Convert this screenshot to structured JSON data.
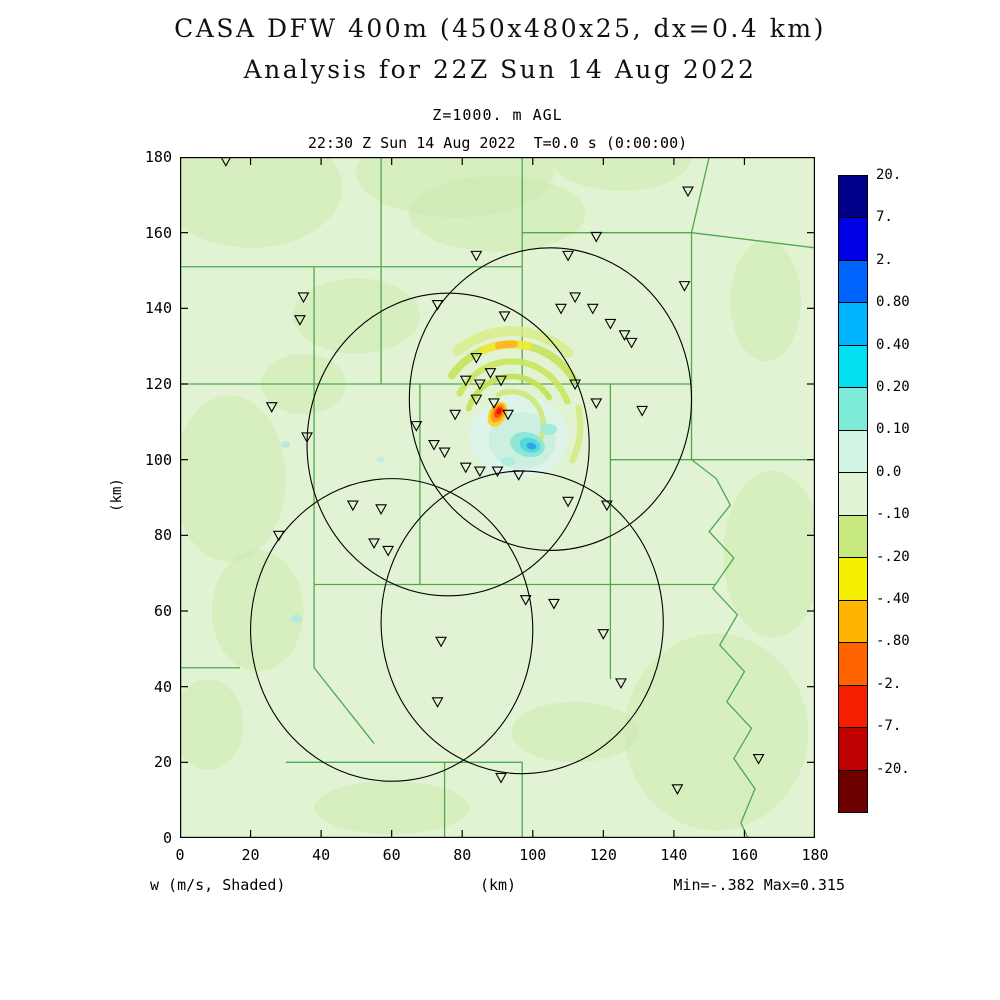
{
  "header": {
    "title": "CASA DFW 400m (450x480x25, dx=0.4 km)",
    "subtitle": "Analysis for 22Z Sun 14 Aug 2022",
    "level_label": "Z=1000. m AGL",
    "time_label": "22:30 Z Sun 14 Aug 2022  T=0.0 s (0:00:00)"
  },
  "footer": {
    "field_label": "w (m/s, Shaded)",
    "stats_label": "Min=-.382 Max=0.315"
  },
  "chart_data": {
    "type": "heatmap",
    "title": "CASA DFW 400m (450x480x25, dx=0.4 km)",
    "subtitle": "Analysis for 22Z Sun 14 Aug 2022",
    "level_label": "Z=1000. m AGL",
    "time_label": "22:30 Z Sun 14 Aug 2022  T=0.0 s (0:00:00)",
    "field": "w (m/s, Shaded)",
    "min_value": -0.382,
    "max_value": 0.315,
    "xlabel": "(km)",
    "ylabel": "(km)",
    "xlim": [
      0,
      180
    ],
    "ylim": [
      0,
      180
    ],
    "xticks": [
      0,
      20,
      40,
      60,
      80,
      100,
      120,
      140,
      160,
      180
    ],
    "yticks": [
      0,
      20,
      40,
      60,
      80,
      100,
      120,
      140,
      160,
      180
    ],
    "colorbar": {
      "tick_labels": [
        "20.",
        "7.",
        "2.",
        "0.80",
        "0.40",
        "0.20",
        "0.10",
        "0.0",
        "-.10",
        "-.20",
        "-.40",
        "-.80",
        "-2.",
        "-7.",
        "-20."
      ],
      "colors_top_to_bottom": [
        "#00008B",
        "#0000E6",
        "#0064FF",
        "#00B4FF",
        "#00E0F0",
        "#7CEBD8",
        "#D4F5E6",
        "#E2F4D4",
        "#C6E87E",
        "#F4F000",
        "#FFB400",
        "#FF6400",
        "#F51E00",
        "#BE0000",
        "#6E0000"
      ]
    },
    "map": {
      "background": "#E2F3D3",
      "patch_color": "#CDEAAE",
      "county_color": "#4FA84F",
      "patches": [
        [
          20,
          172,
          26,
          16
        ],
        [
          78,
          176,
          28,
          12
        ],
        [
          125,
          180,
          20,
          9
        ],
        [
          14,
          95,
          16,
          22
        ],
        [
          22,
          60,
          13,
          16
        ],
        [
          50,
          138,
          18,
          10
        ],
        [
          152,
          28,
          26,
          26
        ],
        [
          168,
          75,
          14,
          22
        ],
        [
          60,
          8,
          22,
          7
        ],
        [
          112,
          28,
          18,
          8
        ],
        [
          166,
          142,
          10,
          16
        ],
        [
          90,
          165,
          25,
          10
        ],
        [
          35,
          120,
          12,
          8
        ],
        [
          8,
          30,
          10,
          12
        ],
        [
          33,
          58,
          1.6,
          1.1,
          "#B8EADC",
          1
        ],
        [
          30,
          104,
          1.3,
          0.9,
          "#B8EADC",
          1
        ],
        [
          57,
          100,
          1.1,
          0.8,
          "#C4EEE0",
          1
        ]
      ],
      "county_lines": [
        [
          [
            0,
            151
          ],
          [
            57,
            151
          ]
        ],
        [
          [
            57,
            192
          ],
          [
            57,
            120
          ]
        ],
        [
          [
            57,
            151
          ],
          [
            97,
            151
          ]
        ],
        [
          [
            97,
            192
          ],
          [
            97,
            120
          ]
        ],
        [
          [
            97,
            160
          ],
          [
            145,
            160
          ]
        ],
        [
          [
            145,
            160
          ],
          [
            153,
            192
          ]
        ],
        [
          [
            145,
            160
          ],
          [
            180,
            156
          ]
        ],
        [
          [
            145,
            160
          ],
          [
            145,
            100
          ]
        ],
        [
          [
            0,
            120
          ],
          [
            38,
            120
          ]
        ],
        [
          [
            38,
            151
          ],
          [
            38,
            67
          ]
        ],
        [
          [
            38,
            120
          ],
          [
            145,
            120
          ]
        ],
        [
          [
            68,
            120
          ],
          [
            68,
            67
          ]
        ],
        [
          [
            122,
            120
          ],
          [
            122,
            67
          ]
        ],
        [
          [
            38,
            67
          ],
          [
            152,
            67
          ]
        ],
        [
          [
            0,
            45
          ],
          [
            17,
            45
          ]
        ],
        [
          [
            30,
            20
          ],
          [
            97,
            20
          ]
        ],
        [
          [
            75,
            20
          ],
          [
            75,
            0
          ]
        ],
        [
          [
            97,
            20
          ],
          [
            97,
            0
          ]
        ],
        [
          [
            38,
            67
          ],
          [
            38,
            45
          ]
        ],
        [
          [
            38,
            45
          ],
          [
            55,
            25
          ]
        ],
        [
          [
            122,
            67
          ],
          [
            122,
            42
          ]
        ],
        [
          [
            122,
            100
          ],
          [
            180,
            100
          ]
        ],
        [
          [
            145,
            100
          ],
          [
            152,
            95
          ]
        ],
        [
          [
            152,
            95
          ],
          [
            156,
            88
          ],
          [
            150,
            81
          ],
          [
            157,
            74
          ],
          [
            151,
            66
          ],
          [
            158,
            59
          ],
          [
            153,
            51
          ],
          [
            160,
            44
          ],
          [
            155,
            36
          ],
          [
            162,
            29
          ],
          [
            157,
            21
          ],
          [
            163,
            13
          ],
          [
            159,
            4
          ],
          [
            161,
            0
          ]
        ]
      ]
    },
    "radar_range_km": 40,
    "radar_sites": [
      [
        105,
        116
      ],
      [
        76,
        104
      ],
      [
        60,
        55
      ],
      [
        97,
        57
      ]
    ],
    "stations": [
      [
        13,
        179
      ],
      [
        35,
        143
      ],
      [
        34,
        137
      ],
      [
        84,
        154
      ],
      [
        73,
        141
      ],
      [
        92,
        138
      ],
      [
        110,
        154
      ],
      [
        112,
        143
      ],
      [
        108,
        140
      ],
      [
        117,
        140
      ],
      [
        122,
        136
      ],
      [
        126,
        133
      ],
      [
        128,
        131
      ],
      [
        143,
        146
      ],
      [
        144,
        171
      ],
      [
        118,
        159
      ],
      [
        84,
        127
      ],
      [
        81,
        121
      ],
      [
        85,
        120
      ],
      [
        88,
        123
      ],
      [
        91,
        121
      ],
      [
        84,
        116
      ],
      [
        89,
        115
      ],
      [
        78,
        112
      ],
      [
        93,
        112
      ],
      [
        112,
        120
      ],
      [
        118,
        115
      ],
      [
        131,
        113
      ],
      [
        67,
        109
      ],
      [
        36,
        106
      ],
      [
        26,
        114
      ],
      [
        72,
        104
      ],
      [
        75,
        102
      ],
      [
        81,
        98
      ],
      [
        85,
        97
      ],
      [
        90,
        97
      ],
      [
        96,
        96
      ],
      [
        110,
        89
      ],
      [
        121,
        88
      ],
      [
        49,
        88
      ],
      [
        57,
        87
      ],
      [
        55,
        78
      ],
      [
        28,
        80
      ],
      [
        59,
        76
      ],
      [
        74,
        52
      ],
      [
        98,
        63
      ],
      [
        120,
        54
      ],
      [
        125,
        41
      ],
      [
        106,
        62
      ],
      [
        73,
        36
      ],
      [
        91,
        16
      ],
      [
        164,
        21
      ],
      [
        141,
        13
      ]
    ],
    "feature_layers": [
      {
        "kind": "blob",
        "cx": 96,
        "cy": 106,
        "rx": 14,
        "ry": 11,
        "fill": "#DFF4E8"
      },
      {
        "kind": "blob",
        "cx": 97,
        "cy": 105,
        "rx": 9.5,
        "ry": 7.5,
        "fill": "#CDEFE0"
      },
      {
        "kind": "arc",
        "cx": 94,
        "cy": 109,
        "r": 25,
        "a0": 50,
        "a1": 128,
        "fill": "#D8EC86",
        "w": 2.8,
        "op": 0.8
      },
      {
        "kind": "arc",
        "cx": 94,
        "cy": 109,
        "r": 21.5,
        "a0": 35,
        "a1": 142,
        "fill": "#C6E35C",
        "w": 2.2,
        "op": 0.9
      },
      {
        "kind": "arc",
        "cx": 94,
        "cy": 109,
        "r": 21.5,
        "a0": 78,
        "a1": 112,
        "fill": "#F0E838",
        "w": 2.4,
        "op": 0.9
      },
      {
        "kind": "arc",
        "cx": 94,
        "cy": 109,
        "r": 21.5,
        "a0": 88,
        "a1": 100,
        "fill": "#FFB020",
        "w": 2.0,
        "op": 0.85
      },
      {
        "kind": "arc",
        "cx": 94,
        "cy": 109,
        "r": 17,
        "a0": 22,
        "a1": 150,
        "fill": "#CBE55E",
        "w": 1.8,
        "op": 0.9
      },
      {
        "kind": "arc",
        "cx": 94,
        "cy": 109,
        "r": 13,
        "a0": 35,
        "a1": 160,
        "fill": "#C2E152",
        "w": 1.6,
        "op": 0.9
      },
      {
        "kind": "arc",
        "cx": 94,
        "cy": 109,
        "r": 19.5,
        "a0": -28,
        "a1": 14,
        "fill": "#D4E97E",
        "w": 1.8,
        "op": 0.85
      },
      {
        "kind": "arc",
        "cx": 94,
        "cy": 109,
        "r": 9,
        "a0": -30,
        "a1": 115,
        "fill": "#CFE87A",
        "w": 1.5,
        "op": 0.9
      },
      {
        "kind": "blob",
        "cx": 98.5,
        "cy": 104,
        "rx": 5,
        "ry": 3.2,
        "rot": -15,
        "fill": "#8FE6D6"
      },
      {
        "kind": "blob",
        "cx": 99.2,
        "cy": 103.8,
        "rx": 3,
        "ry": 1.9,
        "rot": -15,
        "fill": "#52D8DE"
      },
      {
        "kind": "blob",
        "cx": 99.6,
        "cy": 103.6,
        "rx": 1.4,
        "ry": 0.9,
        "rot": -15,
        "fill": "#2EA6E8"
      },
      {
        "kind": "blob",
        "cx": 104.5,
        "cy": 108,
        "rx": 2.4,
        "ry": 1.5,
        "rot": 0,
        "fill": "#9FEBDC"
      },
      {
        "kind": "blob",
        "cx": 93,
        "cy": 99.5,
        "rx": 2,
        "ry": 1.2,
        "rot": 0,
        "fill": "#ADEEDF"
      },
      {
        "kind": "blob",
        "cx": 90,
        "cy": 112,
        "rx": 3.8,
        "ry": 2.3,
        "rot": 63,
        "fill": "#F6D52E"
      },
      {
        "kind": "blob",
        "cx": 90.1,
        "cy": 112.3,
        "rx": 2.9,
        "ry": 1.7,
        "rot": 63,
        "fill": "#FF9C1E"
      },
      {
        "kind": "blob",
        "cx": 90.3,
        "cy": 112.6,
        "rx": 1.8,
        "ry": 1.05,
        "rot": 63,
        "fill": "#FF4E00"
      },
      {
        "kind": "blob",
        "cx": 90.4,
        "cy": 112.8,
        "rx": 1.0,
        "ry": 0.55,
        "rot": 63,
        "fill": "#E51600"
      }
    ]
  }
}
